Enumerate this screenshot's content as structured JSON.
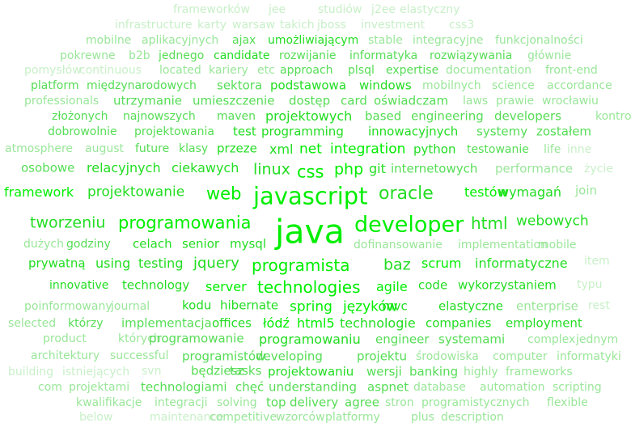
{
  "palette": {
    "strongest": "#00ee00",
    "strong": "#22dd22",
    "medium": "#55dd55",
    "light": "#99e699",
    "faint": "#c8f0c8"
  },
  "rows": [
    [
      "frameworków jee studiów j2ee elastyczny"
    ],
    [
      "infrastructure karty warsaw takich jboss investment css3"
    ],
    [
      "mobilne aplikacyjnych ajax umożliwiającym stable integracyjne funkcjonalności"
    ],
    [
      "pokrewne b2b jednego candidate rozwijanie informatyka rozwiązywania głównie"
    ],
    [
      "pomysłów continuous located kariery etc approach plsql expertise documentation front-end"
    ],
    [
      "platform międzynarodowych sektora podstawowa windows mobilnych science accordance"
    ],
    [
      "professionals utrzymanie umieszczenie dostęp card oświadczam laws prawie wrocławiu"
    ],
    [
      "złożonych najnowszych maven projektowych based engineering developers kontroli"
    ],
    [
      "dobrowolnie projektowania test programming innowacyjnych systemy zostałem"
    ],
    [
      "atmosphere august future klasy przeze xml net integration python testowanie life inne"
    ],
    [
      "osobowe relacyjnych ciekawych linux css php git internetowych performance życie"
    ],
    [
      "framework projektowanie web javascript oracle testów wymagań join"
    ],
    [
      "tworzeniu programowania java developer html webowych"
    ],
    [
      "dużych godziny celach senior mysql dofinansowanie implementation mobile"
    ],
    [
      "prywatną using testing jquery programista baz scrum informatyczne item"
    ],
    [
      "innovative technology server technologies agile code wykorzystaniem typu"
    ],
    [
      "poinformowany journal kodu hibernate spring języków mvc elastyczne enterprise rest"
    ],
    [
      "selected którzy implementacja offices łódź html5 technologie companies employment"
    ],
    [
      "product których programowanie programowaniu engineer systemami complex jednym"
    ],
    [
      "architektury successful programistów developing projektu środowiska computer informatyki"
    ],
    [
      "building istniejących svn będziesz tasks projektowaniu wersji banking highly frameworks"
    ],
    [
      "com projektami technologiami chęć understanding aspnet database automation scripting"
    ],
    [
      "kwalifikacje integracji solving top delivery agree stron programistycznych flexible"
    ],
    [
      "below maintenance competitive wzorców platformy plus description"
    ]
  ]
}
